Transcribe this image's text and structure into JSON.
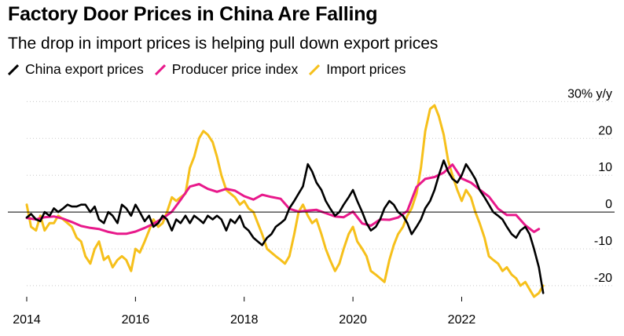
{
  "header": {
    "title": "Factory Door Prices in China Are Falling",
    "subtitle": "The drop in import prices is helping pull down export prices"
  },
  "colors": {
    "export": "#000000",
    "ppi": "#e8198b",
    "import": "#f6c01b",
    "zero_line": "#000000",
    "grid": "#c8c8c8"
  },
  "chart_data": {
    "type": "line",
    "x_unit": "year",
    "xlim": [
      2014.0,
      2023.8
    ],
    "ylim": [
      -23,
      32
    ],
    "xticks": [
      {
        "value": 2014,
        "label": "2014"
      },
      {
        "value": 2016,
        "label": "2016"
      },
      {
        "value": 2018,
        "label": "2018"
      },
      {
        "value": 2020,
        "label": "2020"
      },
      {
        "value": 2022,
        "label": "2022"
      }
    ],
    "yticks": [
      {
        "value": 30,
        "label": "30% y/y"
      },
      {
        "value": 20,
        "label": "20"
      },
      {
        "value": 10,
        "label": "10"
      },
      {
        "value": 0,
        "label": "0"
      },
      {
        "value": -10,
        "label": "-10"
      },
      {
        "value": -20,
        "label": "-20"
      }
    ],
    "series": [
      {
        "key": "export",
        "name": "China export prices",
        "points": [
          [
            2014.0,
            -1.5
          ],
          [
            2014.08,
            -0.5
          ],
          [
            2014.17,
            -2
          ],
          [
            2014.25,
            -2.5
          ],
          [
            2014.33,
            0
          ],
          [
            2014.42,
            -1
          ],
          [
            2014.5,
            1
          ],
          [
            2014.58,
            0
          ],
          [
            2014.67,
            1
          ],
          [
            2014.75,
            2
          ],
          [
            2014.83,
            1.5
          ],
          [
            2014.92,
            1.5
          ],
          [
            2015.0,
            2
          ],
          [
            2015.08,
            2
          ],
          [
            2015.17,
            0
          ],
          [
            2015.25,
            1.5
          ],
          [
            2015.33,
            -2
          ],
          [
            2015.42,
            -3
          ],
          [
            2015.5,
            0
          ],
          [
            2015.58,
            -1
          ],
          [
            2015.67,
            -3
          ],
          [
            2015.75,
            2
          ],
          [
            2015.83,
            1
          ],
          [
            2015.92,
            -1
          ],
          [
            2016.0,
            2
          ],
          [
            2016.08,
            0
          ],
          [
            2016.17,
            -2.5
          ],
          [
            2016.25,
            -1
          ],
          [
            2016.33,
            -4
          ],
          [
            2016.42,
            -3
          ],
          [
            2016.5,
            -1
          ],
          [
            2016.58,
            -2
          ],
          [
            2016.67,
            -5
          ],
          [
            2016.75,
            -2
          ],
          [
            2016.83,
            -3
          ],
          [
            2016.92,
            -1
          ],
          [
            2017.0,
            -3
          ],
          [
            2017.08,
            -1
          ],
          [
            2017.17,
            -2
          ],
          [
            2017.25,
            -3
          ],
          [
            2017.33,
            -1
          ],
          [
            2017.42,
            -2
          ],
          [
            2017.5,
            -1
          ],
          [
            2017.58,
            -2
          ],
          [
            2017.67,
            -5
          ],
          [
            2017.75,
            -2
          ],
          [
            2017.83,
            -3
          ],
          [
            2017.92,
            -1
          ],
          [
            2018.0,
            -4
          ],
          [
            2018.08,
            -5
          ],
          [
            2018.17,
            -7
          ],
          [
            2018.25,
            -8
          ],
          [
            2018.33,
            -9
          ],
          [
            2018.42,
            -7
          ],
          [
            2018.5,
            -6
          ],
          [
            2018.58,
            -4
          ],
          [
            2018.67,
            -3
          ],
          [
            2018.75,
            -2
          ],
          [
            2018.83,
            1
          ],
          [
            2018.92,
            3
          ],
          [
            2019.0,
            5
          ],
          [
            2019.08,
            7
          ],
          [
            2019.17,
            13
          ],
          [
            2019.25,
            11
          ],
          [
            2019.33,
            8
          ],
          [
            2019.42,
            6
          ],
          [
            2019.5,
            3
          ],
          [
            2019.58,
            1
          ],
          [
            2019.67,
            -1
          ],
          [
            2019.75,
            0
          ],
          [
            2019.83,
            2
          ],
          [
            2019.92,
            4
          ],
          [
            2020.0,
            6
          ],
          [
            2020.08,
            3
          ],
          [
            2020.17,
            0
          ],
          [
            2020.25,
            -3
          ],
          [
            2020.33,
            -5
          ],
          [
            2020.42,
            -4
          ],
          [
            2020.5,
            -2
          ],
          [
            2020.58,
            1
          ],
          [
            2020.67,
            3
          ],
          [
            2020.75,
            2
          ],
          [
            2020.83,
            0
          ],
          [
            2020.92,
            -1
          ],
          [
            2021.0,
            -3
          ],
          [
            2021.08,
            -6
          ],
          [
            2021.17,
            -4
          ],
          [
            2021.25,
            -2
          ],
          [
            2021.33,
            1
          ],
          [
            2021.42,
            3
          ],
          [
            2021.5,
            6
          ],
          [
            2021.58,
            10
          ],
          [
            2021.67,
            14
          ],
          [
            2021.75,
            11
          ],
          [
            2021.83,
            9
          ],
          [
            2021.92,
            8
          ],
          [
            2022.0,
            10
          ],
          [
            2022.08,
            13
          ],
          [
            2022.17,
            11
          ],
          [
            2022.25,
            9
          ],
          [
            2022.33,
            6
          ],
          [
            2022.42,
            4
          ],
          [
            2022.5,
            2
          ],
          [
            2022.58,
            0
          ],
          [
            2022.67,
            -1
          ],
          [
            2022.75,
            -2
          ],
          [
            2022.83,
            -4
          ],
          [
            2022.92,
            -6
          ],
          [
            2023.0,
            -7
          ],
          [
            2023.08,
            -5
          ],
          [
            2023.17,
            -4
          ],
          [
            2023.25,
            -6
          ],
          [
            2023.33,
            -10
          ],
          [
            2023.42,
            -15
          ],
          [
            2023.5,
            -22
          ]
        ]
      },
      {
        "key": "ppi",
        "name": "Producer price index",
        "points": [
          [
            2014.0,
            -1.6
          ],
          [
            2014.17,
            -2
          ],
          [
            2014.33,
            -1.4
          ],
          [
            2014.5,
            -1.2
          ],
          [
            2014.67,
            -1.8
          ],
          [
            2014.83,
            -2.7
          ],
          [
            2015.0,
            -3.8
          ],
          [
            2015.17,
            -4.3
          ],
          [
            2015.33,
            -4.6
          ],
          [
            2015.5,
            -5.4
          ],
          [
            2015.67,
            -5.9
          ],
          [
            2015.83,
            -5.9
          ],
          [
            2016.0,
            -5.3
          ],
          [
            2016.17,
            -4.3
          ],
          [
            2016.33,
            -3.2
          ],
          [
            2016.5,
            -1.7
          ],
          [
            2016.67,
            0.1
          ],
          [
            2016.83,
            3.3
          ],
          [
            2017.0,
            6.9
          ],
          [
            2017.17,
            7.6
          ],
          [
            2017.33,
            6.3
          ],
          [
            2017.5,
            5.5
          ],
          [
            2017.67,
            6.3
          ],
          [
            2017.83,
            5.8
          ],
          [
            2018.0,
            4.3
          ],
          [
            2018.17,
            3.4
          ],
          [
            2018.33,
            4.7
          ],
          [
            2018.5,
            4.1
          ],
          [
            2018.67,
            3.6
          ],
          [
            2018.83,
            0.9
          ],
          [
            2019.0,
            0.1
          ],
          [
            2019.17,
            0.4
          ],
          [
            2019.33,
            0.6
          ],
          [
            2019.5,
            -0.3
          ],
          [
            2019.67,
            -1.2
          ],
          [
            2019.83,
            -1.4
          ],
          [
            2020.0,
            0.1
          ],
          [
            2020.17,
            -3.1
          ],
          [
            2020.33,
            -3.7
          ],
          [
            2020.5,
            -2.0
          ],
          [
            2020.67,
            -2.1
          ],
          [
            2020.83,
            -1.5
          ],
          [
            2021.0,
            0.3
          ],
          [
            2021.17,
            6.8
          ],
          [
            2021.33,
            9.0
          ],
          [
            2021.5,
            9.5
          ],
          [
            2021.67,
            10.7
          ],
          [
            2021.83,
            12.9
          ],
          [
            2022.0,
            9.1
          ],
          [
            2022.17,
            8.0
          ],
          [
            2022.33,
            6.1
          ],
          [
            2022.5,
            4.2
          ],
          [
            2022.67,
            0.9
          ],
          [
            2022.83,
            -0.8
          ],
          [
            2023.0,
            -0.8
          ],
          [
            2023.17,
            -3.6
          ],
          [
            2023.33,
            -5.4
          ],
          [
            2023.42,
            -4.6
          ]
        ]
      },
      {
        "key": "import",
        "name": "Import prices",
        "points": [
          [
            2014.0,
            2
          ],
          [
            2014.08,
            -4
          ],
          [
            2014.17,
            -5
          ],
          [
            2014.25,
            -1
          ],
          [
            2014.33,
            -5
          ],
          [
            2014.42,
            -3
          ],
          [
            2014.5,
            -3
          ],
          [
            2014.58,
            -1
          ],
          [
            2014.67,
            -2
          ],
          [
            2014.75,
            -3
          ],
          [
            2014.83,
            -4
          ],
          [
            2014.92,
            -7
          ],
          [
            2015.0,
            -8
          ],
          [
            2015.08,
            -12
          ],
          [
            2015.17,
            -14
          ],
          [
            2015.25,
            -10
          ],
          [
            2015.33,
            -8
          ],
          [
            2015.42,
            -13
          ],
          [
            2015.5,
            -12
          ],
          [
            2015.58,
            -15
          ],
          [
            2015.67,
            -13
          ],
          [
            2015.75,
            -12
          ],
          [
            2015.83,
            -13
          ],
          [
            2015.92,
            -16
          ],
          [
            2016.0,
            -10
          ],
          [
            2016.08,
            -11
          ],
          [
            2016.17,
            -8
          ],
          [
            2016.25,
            -5
          ],
          [
            2016.33,
            -2
          ],
          [
            2016.42,
            -4
          ],
          [
            2016.5,
            -3
          ],
          [
            2016.58,
            0
          ],
          [
            2016.67,
            4
          ],
          [
            2016.75,
            3
          ],
          [
            2016.83,
            4
          ],
          [
            2016.92,
            5
          ],
          [
            2017.0,
            12
          ],
          [
            2017.08,
            15
          ],
          [
            2017.17,
            20
          ],
          [
            2017.25,
            22
          ],
          [
            2017.33,
            21
          ],
          [
            2017.42,
            19
          ],
          [
            2017.5,
            15
          ],
          [
            2017.58,
            10
          ],
          [
            2017.67,
            6
          ],
          [
            2017.75,
            5
          ],
          [
            2017.83,
            4
          ],
          [
            2017.92,
            2
          ],
          [
            2018.0,
            3
          ],
          [
            2018.08,
            1
          ],
          [
            2018.17,
            0
          ],
          [
            2018.25,
            -3
          ],
          [
            2018.33,
            -6
          ],
          [
            2018.42,
            -10
          ],
          [
            2018.5,
            -11
          ],
          [
            2018.58,
            -12
          ],
          [
            2018.67,
            -13
          ],
          [
            2018.75,
            -14
          ],
          [
            2018.83,
            -12
          ],
          [
            2018.92,
            -6
          ],
          [
            2019.0,
            0
          ],
          [
            2019.08,
            2
          ],
          [
            2019.17,
            -1
          ],
          [
            2019.25,
            -3
          ],
          [
            2019.33,
            -2
          ],
          [
            2019.42,
            -6
          ],
          [
            2019.5,
            -10
          ],
          [
            2019.58,
            -13
          ],
          [
            2019.67,
            -16
          ],
          [
            2019.75,
            -14
          ],
          [
            2019.83,
            -10
          ],
          [
            2019.92,
            -6
          ],
          [
            2020.0,
            -4
          ],
          [
            2020.08,
            -8
          ],
          [
            2020.17,
            -10
          ],
          [
            2020.25,
            -12
          ],
          [
            2020.33,
            -16
          ],
          [
            2020.42,
            -17
          ],
          [
            2020.5,
            -18
          ],
          [
            2020.58,
            -19
          ],
          [
            2020.67,
            -13
          ],
          [
            2020.75,
            -9
          ],
          [
            2020.83,
            -6
          ],
          [
            2020.92,
            -4
          ],
          [
            2021.0,
            -1
          ],
          [
            2021.08,
            1
          ],
          [
            2021.17,
            5
          ],
          [
            2021.25,
            12
          ],
          [
            2021.33,
            22
          ],
          [
            2021.42,
            28
          ],
          [
            2021.5,
            29
          ],
          [
            2021.58,
            26
          ],
          [
            2021.67,
            21
          ],
          [
            2021.75,
            14
          ],
          [
            2021.83,
            10
          ],
          [
            2021.92,
            6
          ],
          [
            2022.0,
            3
          ],
          [
            2022.08,
            6
          ],
          [
            2022.17,
            4
          ],
          [
            2022.25,
            0
          ],
          [
            2022.33,
            -3
          ],
          [
            2022.42,
            -7
          ],
          [
            2022.5,
            -12
          ],
          [
            2022.58,
            -13
          ],
          [
            2022.67,
            -14
          ],
          [
            2022.75,
            -16
          ],
          [
            2022.83,
            -15
          ],
          [
            2022.92,
            -17
          ],
          [
            2023.0,
            -18
          ],
          [
            2023.08,
            -20
          ],
          [
            2023.17,
            -19
          ],
          [
            2023.25,
            -21
          ],
          [
            2023.33,
            -23
          ],
          [
            2023.42,
            -22
          ],
          [
            2023.5,
            -20
          ]
        ]
      }
    ]
  }
}
